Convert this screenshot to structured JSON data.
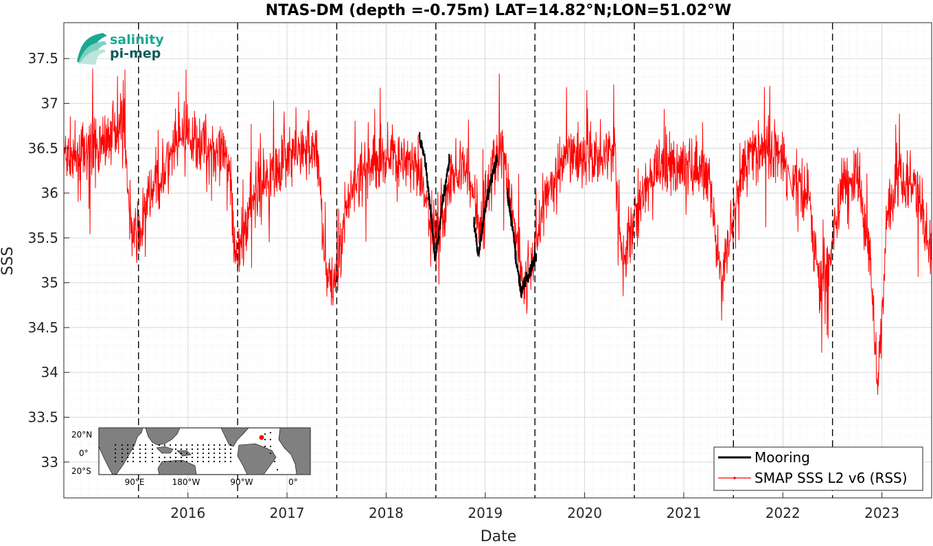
{
  "chart_data": {
    "type": "line",
    "title": "NTAS-DM (depth =-0.75m) LAT=14.82°N;LON=51.02°W",
    "xlabel": "Date",
    "ylabel": "SSS",
    "xlim": [
      "2015-04-01",
      "2023-12-31"
    ],
    "ylim": [
      32.6,
      37.9
    ],
    "x_ticks": [
      "2016",
      "2017",
      "2018",
      "2019",
      "2020",
      "2021",
      "2022",
      "2023"
    ],
    "y_ticks": [
      33,
      33.5,
      34,
      34.5,
      35,
      35.5,
      36,
      36.5,
      37,
      37.5
    ],
    "grid": true,
    "minor_grid": true,
    "vertical_reference_lines": [
      "2016-01-01",
      "2016-12-31",
      "2017-12-31",
      "2018-12-31",
      "2019-12-31",
      "2020-12-31",
      "2021-12-31",
      "2022-12-31"
    ],
    "legend_position": "bottom-right",
    "series": [
      {
        "name": "Mooring",
        "color": "#000000",
        "segments": [
          {
            "start": "2018-11-01",
            "end": "2019-02-20",
            "points": [
              [
                "2018-11-01",
                36.6
              ],
              [
                "2018-11-20",
                36.4
              ],
              [
                "2018-12-05",
                36.0
              ],
              [
                "2018-12-18",
                35.6
              ],
              [
                "2018-12-28",
                35.3
              ],
              [
                "2019-01-10",
                35.5
              ],
              [
                "2019-01-25",
                35.9
              ],
              [
                "2019-02-10",
                36.2
              ],
              [
                "2019-02-20",
                36.4
              ]
            ]
          },
          {
            "start": "2019-05-20",
            "end": "2019-08-15",
            "points": [
              [
                "2019-05-20",
                35.7
              ],
              [
                "2019-06-05",
                35.3
              ],
              [
                "2019-06-20",
                35.6
              ],
              [
                "2019-07-05",
                35.9
              ],
              [
                "2019-07-20",
                36.1
              ],
              [
                "2019-08-05",
                36.3
              ],
              [
                "2019-08-15",
                36.4
              ]
            ]
          },
          {
            "start": "2019-09-20",
            "end": "2020-01-05",
            "points": [
              [
                "2019-09-20",
                36.0
              ],
              [
                "2019-10-10",
                35.6
              ],
              [
                "2019-10-25",
                35.2
              ],
              [
                "2019-11-10",
                34.9
              ],
              [
                "2019-11-25",
                35.0
              ],
              [
                "2019-12-10",
                35.1
              ],
              [
                "2020-01-05",
                35.3
              ]
            ]
          }
        ]
      },
      {
        "name": "SMAP SSS L2 v6 (RSS)",
        "color": "#ff0000",
        "seed": 7,
        "points": [
          [
            "2015-04-01",
            36.4
          ],
          [
            "2015-06-01",
            36.4
          ],
          [
            "2015-08-01",
            36.5
          ],
          [
            "2015-10-01",
            36.7
          ],
          [
            "2015-11-10",
            36.8
          ],
          [
            "2015-11-25",
            35.9
          ],
          [
            "2015-12-15",
            35.5
          ],
          [
            "2016-01-10",
            35.6
          ],
          [
            "2016-02-10",
            36.0
          ],
          [
            "2016-04-01",
            36.2
          ],
          [
            "2016-06-01",
            36.6
          ],
          [
            "2016-08-01",
            36.6
          ],
          [
            "2016-10-01",
            36.5
          ],
          [
            "2016-12-01",
            36.3
          ],
          [
            "2016-12-28",
            35.2
          ],
          [
            "2017-01-20",
            35.5
          ],
          [
            "2017-03-01",
            36.0
          ],
          [
            "2017-05-01",
            36.2
          ],
          [
            "2017-07-01",
            36.4
          ],
          [
            "2017-09-01",
            36.5
          ],
          [
            "2017-10-20",
            36.5
          ],
          [
            "2017-11-25",
            35.0
          ],
          [
            "2017-12-20",
            35.0
          ],
          [
            "2018-01-20",
            35.5
          ],
          [
            "2018-03-01",
            36.1
          ],
          [
            "2018-05-01",
            36.3
          ],
          [
            "2018-07-01",
            36.4
          ],
          [
            "2018-09-01",
            36.4
          ],
          [
            "2018-11-01",
            36.2
          ],
          [
            "2018-12-10",
            35.7
          ],
          [
            "2019-01-15",
            35.6
          ],
          [
            "2019-03-01",
            36.2
          ],
          [
            "2019-05-01",
            36.3
          ],
          [
            "2019-06-10",
            35.6
          ],
          [
            "2019-07-10",
            36.1
          ],
          [
            "2019-09-01",
            36.5
          ],
          [
            "2019-10-10",
            35.8
          ],
          [
            "2019-11-20",
            35.0
          ],
          [
            "2019-12-20",
            35.2
          ],
          [
            "2020-02-01",
            35.9
          ],
          [
            "2020-04-01",
            36.3
          ],
          [
            "2020-06-01",
            36.4
          ],
          [
            "2020-08-01",
            36.4
          ],
          [
            "2020-10-20",
            36.5
          ],
          [
            "2020-11-20",
            35.2
          ],
          [
            "2020-12-20",
            35.6
          ],
          [
            "2021-02-01",
            36.0
          ],
          [
            "2021-04-01",
            36.3
          ],
          [
            "2021-06-01",
            36.3
          ],
          [
            "2021-08-01",
            36.3
          ],
          [
            "2021-10-01",
            36.2
          ],
          [
            "2021-11-15",
            35.0
          ],
          [
            "2021-12-15",
            35.5
          ],
          [
            "2022-02-01",
            36.3
          ],
          [
            "2022-04-01",
            36.5
          ],
          [
            "2022-06-01",
            36.5
          ],
          [
            "2022-08-01",
            36.2
          ],
          [
            "2022-10-01",
            36.0
          ],
          [
            "2022-11-15",
            35.0
          ],
          [
            "2022-12-20",
            35.3
          ],
          [
            "2023-02-01",
            36.0
          ],
          [
            "2023-04-01",
            36.2
          ],
          [
            "2023-05-20",
            35.2
          ],
          [
            "2023-06-15",
            33.8
          ],
          [
            "2023-07-20",
            35.8
          ],
          [
            "2023-09-01",
            36.2
          ],
          [
            "2023-11-01",
            36.1
          ],
          [
            "2023-12-31",
            35.3
          ]
        ]
      }
    ],
    "inset_map": {
      "lat_labels": [
        "20°N",
        "0°",
        "20°S"
      ],
      "lon_labels": [
        "90°E",
        "180°W",
        "90°W",
        "0°"
      ],
      "marker_color": "#ff0000",
      "land_color": "#808080",
      "ocean_color": "#ffffff"
    }
  },
  "logo": {
    "line1": "salinity",
    "line2": "pi-mep",
    "color_top": "#1aa893",
    "color_bottom": "#0d5a5a"
  }
}
